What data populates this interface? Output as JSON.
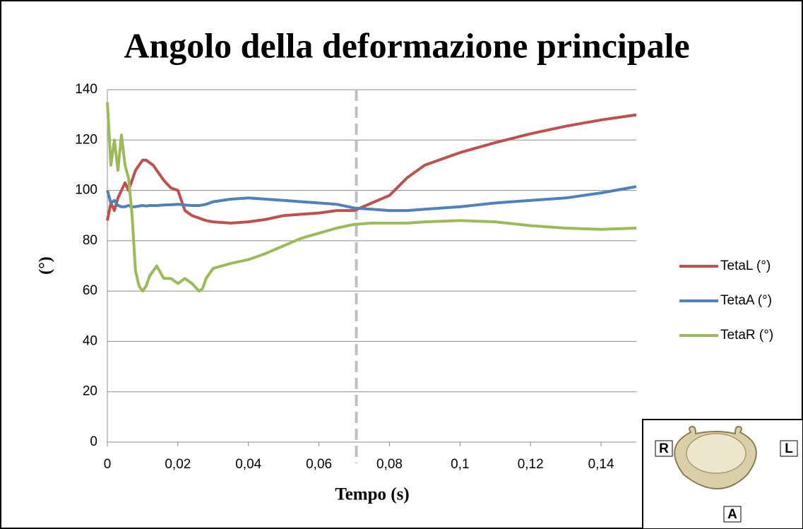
{
  "chart_data": {
    "type": "line",
    "title": "Angolo della deformazione principale",
    "x_label": "Tempo (s)",
    "y_label": "(°)",
    "x": [
      0,
      0.001,
      0.002,
      0.003,
      0.004,
      0.005,
      0.006,
      0.007,
      0.008,
      0.009,
      0.01,
      0.011,
      0.012,
      0.013,
      0.014,
      0.016,
      0.018,
      0.02,
      0.022,
      0.024,
      0.026,
      0.027,
      0.028,
      0.03,
      0.035,
      0.04,
      0.045,
      0.05,
      0.055,
      0.06,
      0.065,
      0.07,
      0.075,
      0.08,
      0.085,
      0.09,
      0.1,
      0.11,
      0.12,
      0.13,
      0.14,
      0.15
    ],
    "series": [
      {
        "name": "TetaL (°)",
        "color": "#c0504d",
        "values": [
          88,
          95,
          92,
          97,
          100,
          103,
          100,
          104,
          108,
          110,
          112,
          112,
          111,
          110,
          108,
          104,
          101,
          100,
          92,
          90,
          89,
          88.5,
          88,
          87.5,
          87,
          87.5,
          88.5,
          90,
          90.5,
          91,
          92,
          92,
          95,
          98,
          105,
          110,
          115,
          119,
          122.5,
          125.5,
          128,
          130
        ]
      },
      {
        "name": "TetaA (°)",
        "color": "#4f81bd",
        "values": [
          100,
          95,
          96,
          94,
          93.5,
          93.5,
          94,
          93.5,
          93.5,
          93.8,
          94,
          93.8,
          94,
          94,
          94,
          94.2,
          94.3,
          94.5,
          94.2,
          94,
          94,
          94.2,
          94.5,
          95.5,
          96.5,
          97,
          96.5,
          96,
          95.5,
          95,
          94.5,
          93,
          92.5,
          92,
          92,
          92.5,
          93.5,
          95,
          96,
          97,
          99,
          101.5
        ]
      },
      {
        "name": "TetaR (°)",
        "color": "#9bbb59",
        "values": [
          135,
          110,
          120,
          108,
          122,
          110,
          105,
          90,
          68,
          62,
          60,
          62,
          66,
          68,
          70,
          65,
          65,
          63,
          65,
          63,
          60,
          61,
          65,
          69,
          71,
          72.5,
          75,
          78,
          81,
          83,
          85,
          86.5,
          87,
          87,
          87,
          87.5,
          88,
          87.5,
          86,
          85,
          84.5,
          85
        ]
      }
    ],
    "xlim": [
      0,
      0.15
    ],
    "xticks": [
      0,
      {
        "value": 0.02,
        "label": "0,02"
      },
      {
        "value": 0.04,
        "label": "0,04"
      },
      {
        "value": 0.06,
        "label": "0,06"
      },
      {
        "value": 0.08,
        "label": "0,08"
      },
      {
        "value": 0.1,
        "label": "0,1"
      },
      {
        "value": 0.12,
        "label": "0,12"
      },
      {
        "value": 0.14,
        "label": "0,14"
      }
    ],
    "ylim": [
      0,
      140
    ],
    "yticks": [
      0,
      20,
      40,
      60,
      80,
      100,
      120,
      140
    ],
    "grid": true,
    "legend": "right",
    "marker_x": 0.0706,
    "inset_labels": [
      "R",
      "L",
      "A"
    ]
  }
}
